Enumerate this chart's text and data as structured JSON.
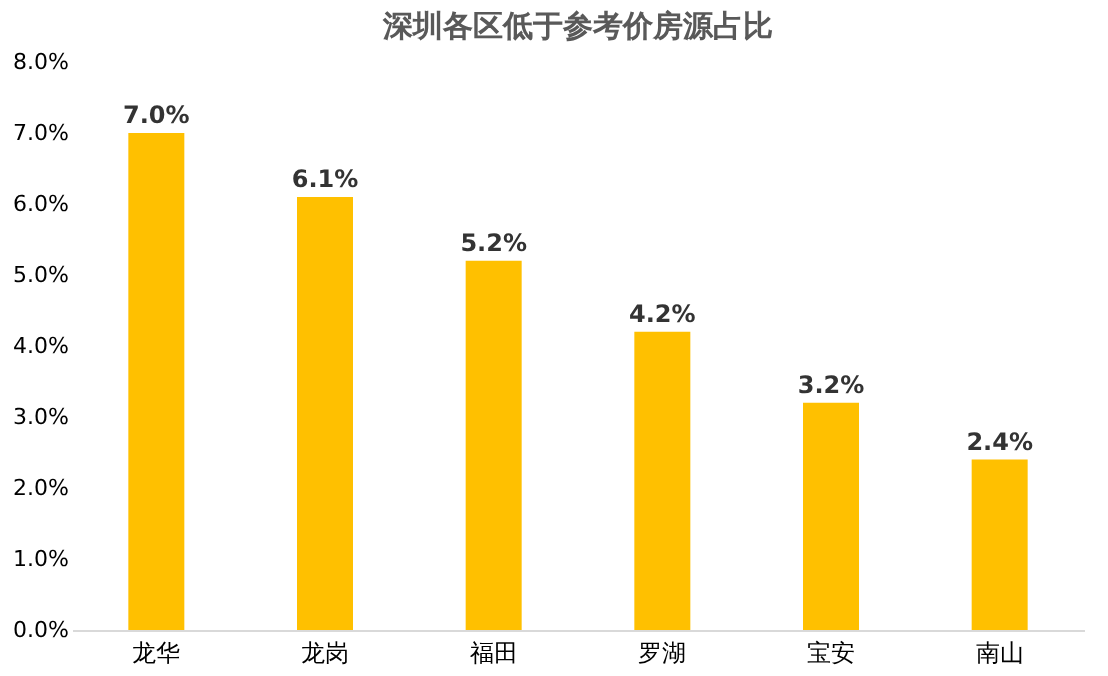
{
  "chart_data": {
    "type": "bar",
    "title": "深圳各区低于参考价房源占比",
    "categories": [
      "龙华",
      "龙岗",
      "福田",
      "罗湖",
      "宝安",
      "南山"
    ],
    "values": [
      7.0,
      6.1,
      5.2,
      4.2,
      3.2,
      2.4
    ],
    "value_labels": [
      "7.0%",
      "6.1%",
      "5.2%",
      "4.2%",
      "3.2%",
      "2.4%"
    ],
    "color": "#ffc000",
    "ylim": [
      0,
      8
    ],
    "yticks": [
      {
        "value": 0,
        "label": "0.0%"
      },
      {
        "value": 1,
        "label": "1.0%"
      },
      {
        "value": 2,
        "label": "2.0%"
      },
      {
        "value": 3,
        "label": "3.0%"
      },
      {
        "value": 4,
        "label": "4.0%"
      },
      {
        "value": 5,
        "label": "5.0%"
      },
      {
        "value": 6,
        "label": "6.0%"
      },
      {
        "value": 7,
        "label": "7.0%"
      },
      {
        "value": 8,
        "label": "8.0%"
      }
    ],
    "grid": false
  }
}
